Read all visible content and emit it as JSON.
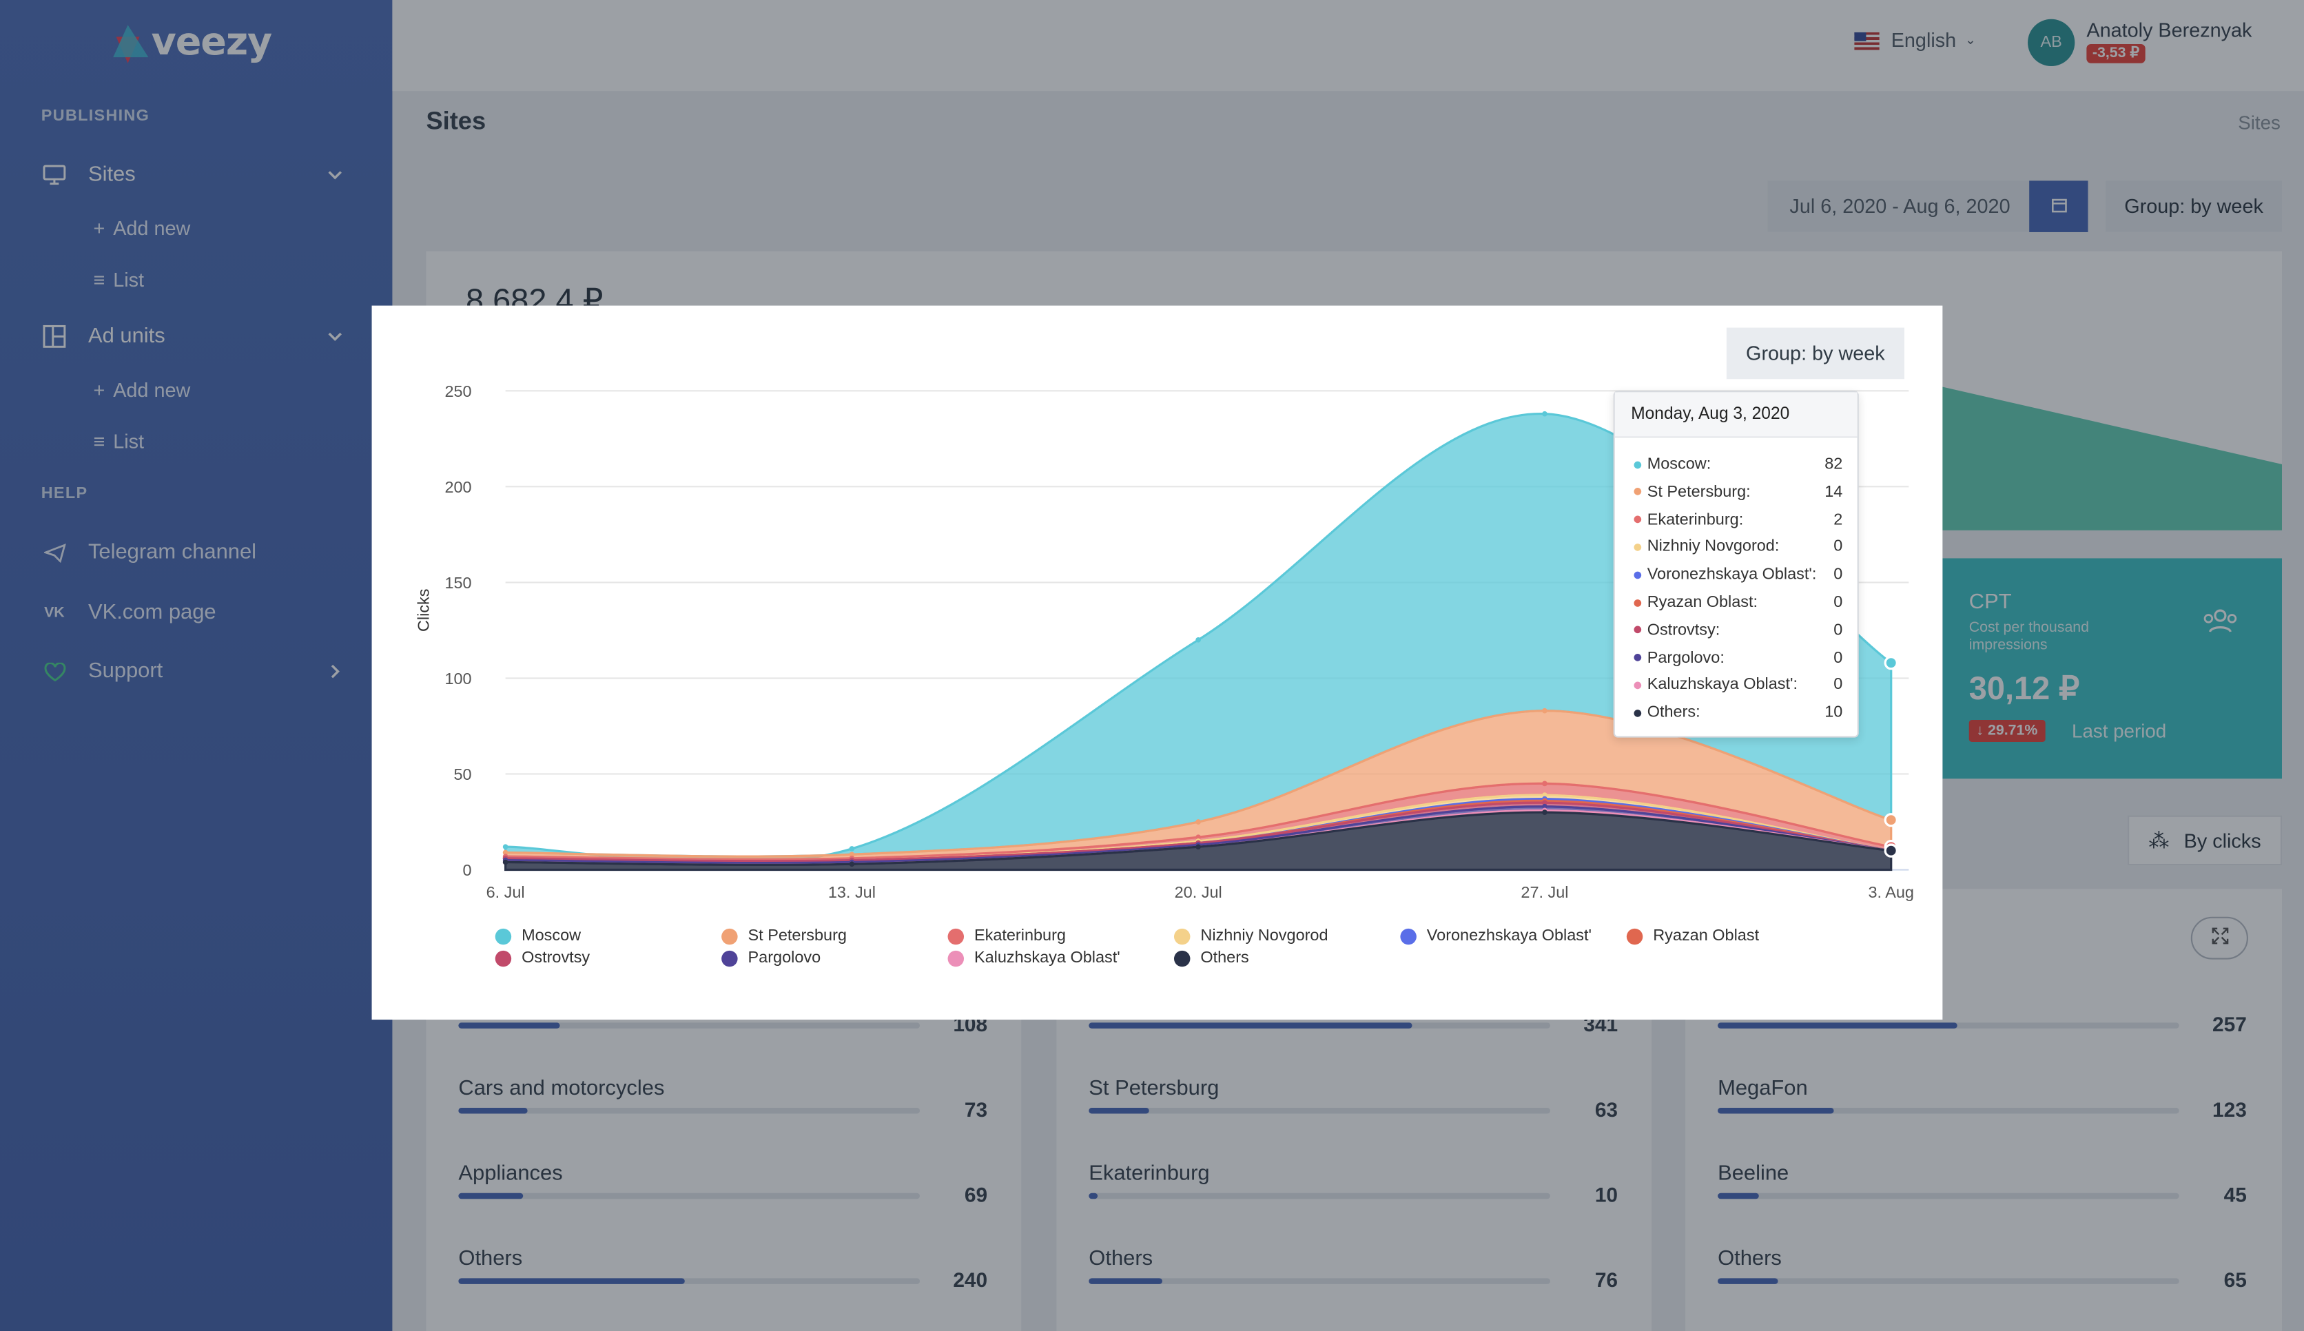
{
  "brand": {
    "name": "veezy"
  },
  "sidebar": {
    "publishing_header": "PUBLISHING",
    "sites": {
      "label": "Sites",
      "add": "Add new",
      "list": "List"
    },
    "ad_units": {
      "label": "Ad units",
      "add": "Add new",
      "list": "List"
    },
    "help_header": "HELP",
    "help_items": [
      {
        "label": "Telegram channel",
        "icon": "telegram-icon"
      },
      {
        "label": "VK.com page",
        "icon": "vk-icon"
      },
      {
        "label": "Support",
        "icon": "heart-icon"
      }
    ]
  },
  "topbar": {
    "language": "English",
    "user_initials": "AB",
    "user_name": "Anatoly Bereznyak",
    "balance": "-3,53 ₽"
  },
  "page": {
    "title": "Sites",
    "breadcrumb": "Sites",
    "date_range": "Jul 6, 2020 - Aug 6, 2020",
    "group": "Group: by week",
    "total": "8 682,4 ₽"
  },
  "cpt": {
    "title": "CPT",
    "subtitle": "Cost per thousand impressions",
    "value": "30,12 ₽",
    "delta": "↓ 29.71%",
    "period": "Last period"
  },
  "sort_button": "By clicks",
  "lists": [
    {
      "rows": [
        {
          "label": "",
          "value": "108",
          "fill": 0.22
        },
        {
          "label": "Cars and motorcycles",
          "value": "73",
          "fill": 0.15
        },
        {
          "label": "Appliances",
          "value": "69",
          "fill": 0.14
        },
        {
          "label": "Others",
          "value": "240",
          "fill": 0.49
        }
      ]
    },
    {
      "rows": [
        {
          "label": "",
          "value": "341",
          "fill": 0.7
        },
        {
          "label": "St Petersburg",
          "value": "63",
          "fill": 0.13
        },
        {
          "label": "Ekaterinburg",
          "value": "10",
          "fill": 0.02
        },
        {
          "label": "Others",
          "value": "76",
          "fill": 0.16
        }
      ]
    },
    {
      "rows": [
        {
          "label": "",
          "value": "257",
          "fill": 0.52
        },
        {
          "label": "MegaFon",
          "value": "123",
          "fill": 0.25
        },
        {
          "label": "Beeline",
          "value": "45",
          "fill": 0.09
        },
        {
          "label": "Others",
          "value": "65",
          "fill": 0.13
        }
      ]
    }
  ],
  "modal": {
    "group_button": "Group: by week",
    "tooltip": {
      "date": "Monday, Aug 3, 2020"
    }
  },
  "chart_data": {
    "type": "area",
    "stacked": true,
    "ylabel": "Clicks",
    "ylim": [
      0,
      250
    ],
    "yticks": [
      "0",
      "50",
      "100",
      "150",
      "200",
      "250"
    ],
    "categories": [
      "6. Jul",
      "13. Jul",
      "20. Jul",
      "27. Jul",
      "3. Aug"
    ],
    "series": [
      {
        "name": "Moscow",
        "color": "#5ac8d8",
        "values": [
          3,
          3,
          95,
          155,
          82
        ]
      },
      {
        "name": "St Petersburg",
        "color": "#f0a174",
        "values": [
          2,
          2,
          8,
          38,
          14
        ]
      },
      {
        "name": "Ekaterinburg",
        "color": "#e46e6e",
        "values": [
          1,
          1,
          2,
          6,
          2
        ]
      },
      {
        "name": "Nizhniy Novgorod",
        "color": "#f4d18a",
        "values": [
          0,
          0,
          1,
          2,
          0
        ]
      },
      {
        "name": "Voronezhskaya Oblast'",
        "color": "#5a6ee8",
        "values": [
          0,
          0,
          0,
          1,
          0
        ]
      },
      {
        "name": "Ryazan Oblast",
        "color": "#e0674f",
        "values": [
          0,
          0,
          0,
          1,
          0
        ]
      },
      {
        "name": "Ostrovtsy",
        "color": "#c14a6a",
        "values": [
          1,
          1,
          1,
          2,
          0
        ]
      },
      {
        "name": "Pargolovo",
        "color": "#4f4398",
        "values": [
          1,
          1,
          1,
          2,
          0
        ]
      },
      {
        "name": "Kaluzhskaya Oblast'",
        "color": "#ec8fb8",
        "values": [
          0,
          0,
          0,
          1,
          0
        ]
      },
      {
        "name": "Others",
        "color": "#2a3248",
        "values": [
          4,
          3,
          12,
          30,
          10
        ]
      }
    ],
    "tooltip_values": [
      {
        "name": "Moscow:",
        "value": "82"
      },
      {
        "name": "St Petersburg:",
        "value": "14"
      },
      {
        "name": "Ekaterinburg:",
        "value": "2"
      },
      {
        "name": "Nizhniy Novgorod:",
        "value": "0"
      },
      {
        "name": "Voronezhskaya Oblast':",
        "value": "0"
      },
      {
        "name": "Ryazan Oblast:",
        "value": "0"
      },
      {
        "name": "Ostrovtsy:",
        "value": "0"
      },
      {
        "name": "Pargolovo:",
        "value": "0"
      },
      {
        "name": "Kaluzhskaya Oblast':",
        "value": "0"
      },
      {
        "name": "Others:",
        "value": "10"
      }
    ],
    "legend_position": "bottom"
  }
}
